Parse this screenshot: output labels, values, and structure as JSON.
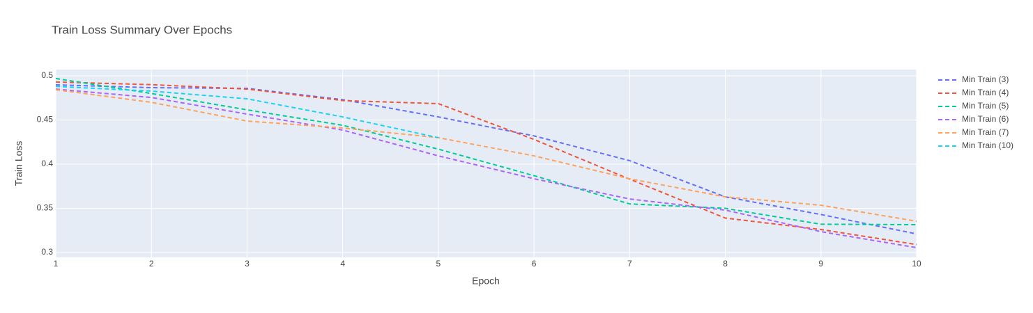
{
  "chart_data": {
    "type": "line",
    "title": "Train Loss Summary Over Epochs",
    "x_label": "Epoch",
    "y_label": "Train Loss",
    "x": [
      1,
      2,
      3,
      4,
      5,
      6,
      7,
      8,
      9,
      10
    ],
    "series": [
      {
        "name": "Min Train (3)",
        "color": "#636efa",
        "values": [
          0.4898,
          0.4866,
          0.4858,
          0.473,
          0.4535,
          0.432,
          0.404,
          0.363,
          0.343,
          0.321
        ]
      },
      {
        "name": "Min Train (4)",
        "color": "#EF553B",
        "values": [
          0.493,
          0.49,
          0.485,
          0.472,
          0.4685,
          0.428,
          0.383,
          0.339,
          0.326,
          0.309
        ]
      },
      {
        "name": "Min Train (5)",
        "color": "#00cc96",
        "values": [
          0.497,
          0.48,
          0.4615,
          0.444,
          0.417,
          0.387,
          0.355,
          0.35,
          0.332,
          0.3315
        ]
      },
      {
        "name": "Min Train (6)",
        "color": "#ab63fa",
        "values": [
          0.485,
          0.4755,
          0.4567,
          0.4386,
          0.4094,
          0.3835,
          0.3606,
          0.348,
          0.3236,
          0.3055
        ]
      },
      {
        "name": "Min Train (7)",
        "color": "#FFA15A",
        "values": [
          0.4843,
          0.47,
          0.4488,
          0.441,
          0.43,
          0.4094,
          0.3835,
          0.363,
          0.3535,
          0.3354
        ]
      },
      {
        "name": "Min Train (10)",
        "color": "#19d3f3",
        "values": [
          0.488,
          0.4827,
          0.474,
          0.4535,
          0.43,
          null,
          null,
          null,
          null,
          null
        ]
      }
    ],
    "xlim": [
      1,
      10
    ],
    "xticks": [
      1,
      2,
      3,
      4,
      5,
      6,
      7,
      8,
      9,
      10
    ],
    "ylim": [
      0.2945,
      0.5071
    ],
    "yticks": [
      0.3,
      0.35,
      0.4,
      0.45,
      0.5
    ],
    "grid": true,
    "dash": true,
    "legend": "right"
  }
}
